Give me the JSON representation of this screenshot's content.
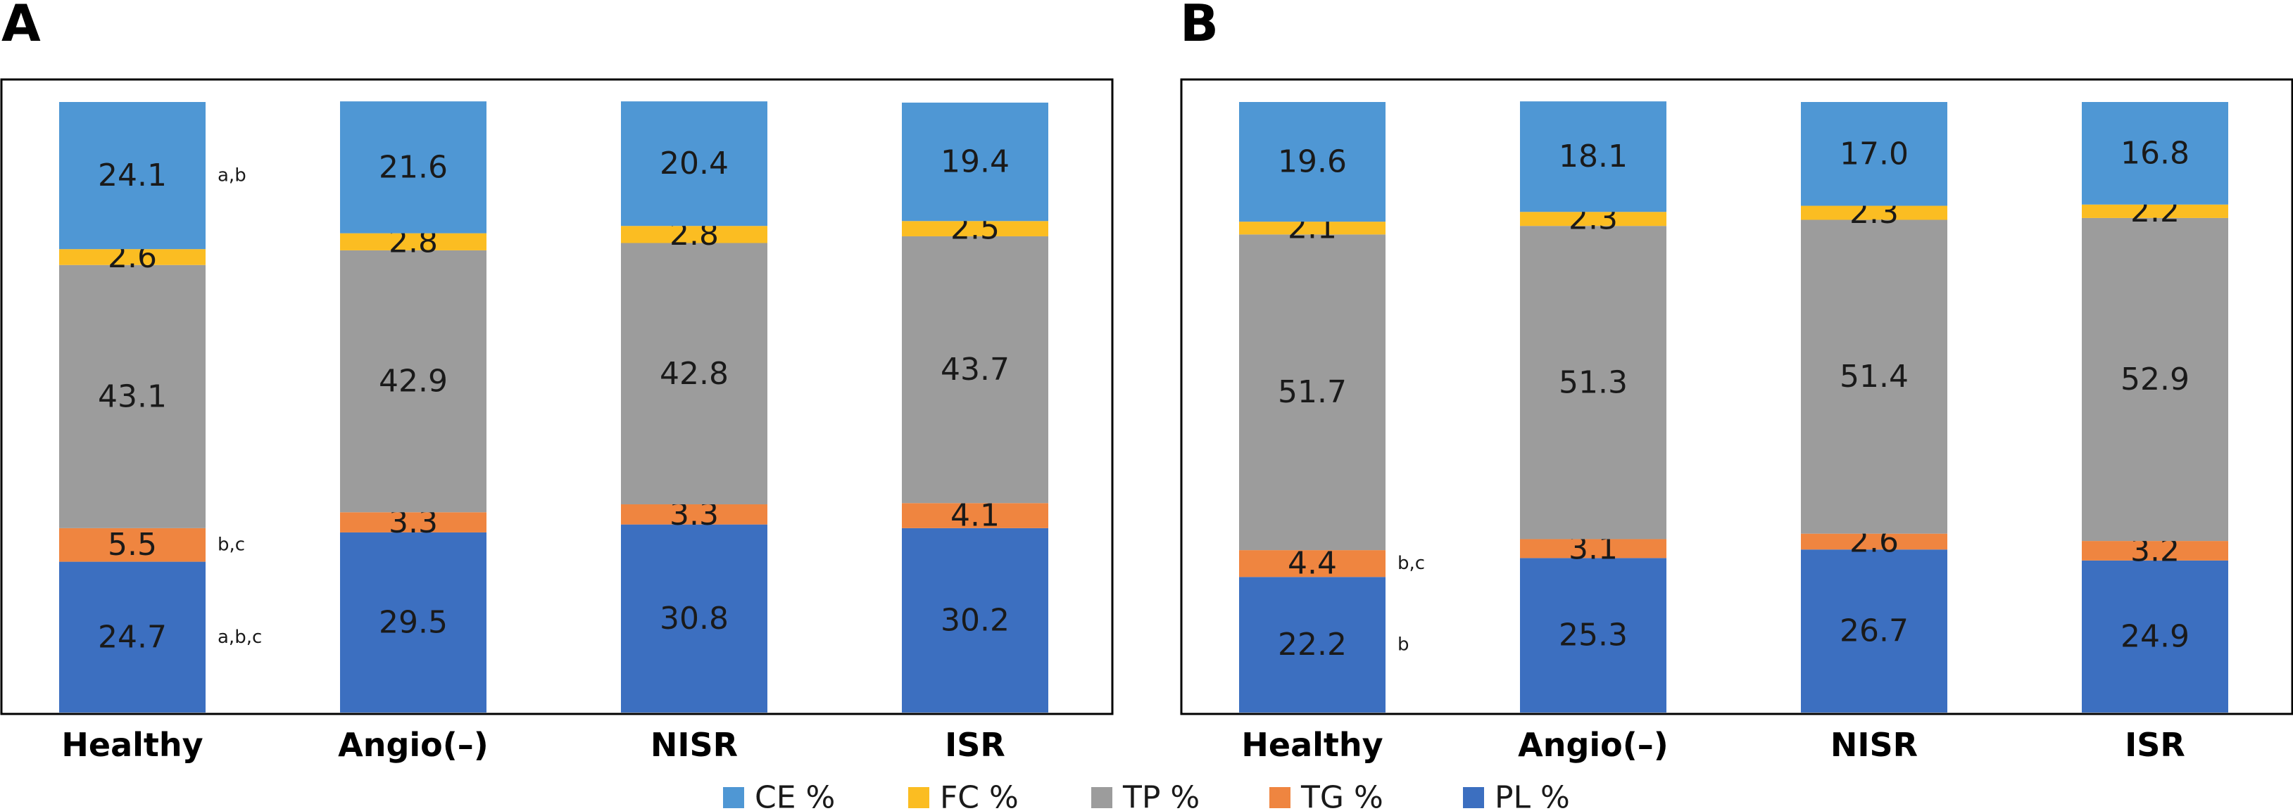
{
  "chart_data": [
    {
      "type": "bar",
      "stacked": true,
      "panel": "A",
      "categories": [
        "Healthy",
        "Angio(–)",
        "NISR",
        "ISR"
      ],
      "ylim": [
        0,
        100
      ],
      "grid": false,
      "series": [
        {
          "key": "PL",
          "name": "PL %",
          "color": "#3c6fc0",
          "values": [
            24.7,
            29.5,
            30.8,
            30.2
          ]
        },
        {
          "key": "TG",
          "name": "TG %",
          "color": "#ef8540",
          "values": [
            5.5,
            3.3,
            3.3,
            4.1
          ]
        },
        {
          "key": "TP",
          "name": "TP %",
          "color": "#9c9c9c",
          "values": [
            43.1,
            42.9,
            42.8,
            43.7
          ]
        },
        {
          "key": "FC",
          "name": "FC %",
          "color": "#fbbd22",
          "values": [
            2.6,
            2.8,
            2.8,
            2.5
          ]
        },
        {
          "key": "CE",
          "name": "CE %",
          "color": "#4f97d4",
          "values": [
            24.1,
            21.6,
            20.4,
            19.4
          ]
        }
      ],
      "annotations": [
        {
          "category": "Healthy",
          "series": "CE",
          "text": "a,b"
        },
        {
          "category": "Healthy",
          "series": "TG",
          "text": "b,c"
        },
        {
          "category": "Healthy",
          "series": "PL",
          "text": "a,b,c"
        }
      ]
    },
    {
      "type": "bar",
      "stacked": true,
      "panel": "B",
      "categories": [
        "Healthy",
        "Angio(–)",
        "NISR",
        "ISR"
      ],
      "ylim": [
        0,
        100
      ],
      "grid": false,
      "series": [
        {
          "key": "PL",
          "name": "PL %",
          "color": "#3c6fc0",
          "values": [
            22.2,
            25.3,
            26.7,
            24.9
          ]
        },
        {
          "key": "TG",
          "name": "TG %",
          "color": "#ef8540",
          "values": [
            4.4,
            3.1,
            2.6,
            3.2
          ]
        },
        {
          "key": "TP",
          "name": "TP %",
          "color": "#9c9c9c",
          "values": [
            51.7,
            51.3,
            51.4,
            52.9
          ]
        },
        {
          "key": "FC",
          "name": "FC %",
          "color": "#fbbd22",
          "values": [
            2.1,
            2.3,
            2.3,
            2.2
          ]
        },
        {
          "key": "CE",
          "name": "CE %",
          "color": "#4f97d4",
          "values": [
            19.6,
            18.1,
            17.0,
            16.8
          ]
        }
      ],
      "annotations": [
        {
          "category": "Healthy",
          "series": "TG",
          "text": "b,c"
        },
        {
          "category": "Healthy",
          "series": "PL",
          "text": "b"
        }
      ]
    }
  ],
  "legend": {
    "placement": "bottom",
    "items": [
      {
        "key": "CE",
        "label": "CE %",
        "color": "#4f97d4"
      },
      {
        "key": "FC",
        "label": "FC %",
        "color": "#fbbd22"
      },
      {
        "key": "TP",
        "label": "TP %",
        "color": "#9c9c9c"
      },
      {
        "key": "TG",
        "label": "TG %",
        "color": "#ef8540"
      },
      {
        "key": "PL",
        "label": "PL %",
        "color": "#3c6fc0"
      }
    ]
  }
}
